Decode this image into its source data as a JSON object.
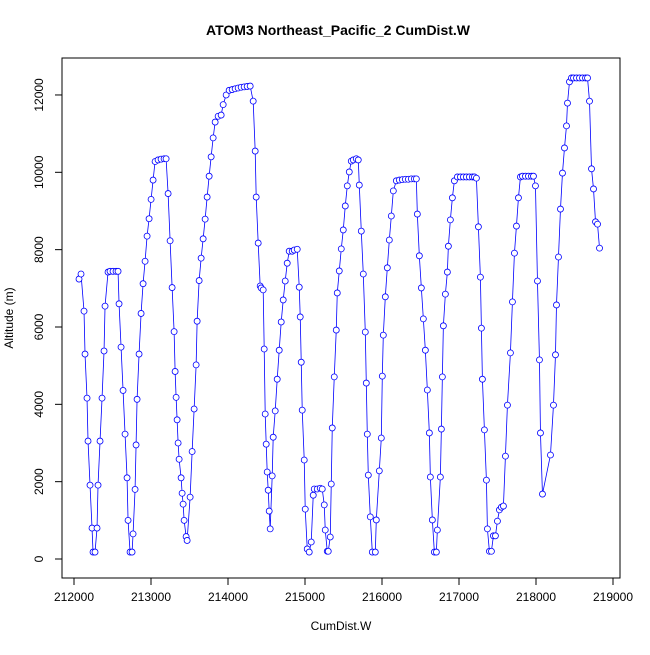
{
  "chart_data": {
    "type": "line",
    "title": "ATOM3 Northeast_Pacific_2 CumDist.W",
    "xlabel": "CumDist.W",
    "ylabel": "Altitude (m)",
    "color": "#0000ff",
    "markers": true,
    "xlim": [
      211844,
      219091
    ],
    "ylim": [
      -491,
      12956
    ],
    "xticks": [
      212000,
      213000,
      214000,
      215000,
      216000,
      217000,
      218000,
      219000
    ],
    "yticks": [
      0,
      2000,
      4000,
      6000,
      8000,
      10000,
      12000
    ],
    "x": [
      212065,
      212091,
      212130,
      212143,
      212169,
      212182,
      212208,
      212234,
      212247,
      212273,
      212299,
      212312,
      212338,
      212364,
      212390,
      212403,
      212442,
      212468,
      212507,
      212546,
      212572,
      212585,
      212611,
      212637,
      212663,
      212689,
      212702,
      212728,
      212754,
      212767,
      212793,
      212806,
      212819,
      212845,
      212871,
      212897,
      212923,
      212949,
      212975,
      213001,
      213027,
      213053,
      213092,
      213131,
      213170,
      213196,
      213222,
      213248,
      213274,
      213300,
      213313,
      213326,
      213339,
      213352,
      213365,
      213391,
      213404,
      213417,
      213430,
      213456,
      213469,
      213508,
      213534,
      213560,
      213586,
      213599,
      213625,
      213651,
      213677,
      213703,
      213729,
      213755,
      213781,
      213807,
      213833,
      213872,
      213911,
      213937,
      213976,
      214015,
      214054,
      214093,
      214132,
      214171,
      214210,
      214249,
      214288,
      214327,
      214353,
      214366,
      214392,
      214418,
      214431,
      214457,
      214470,
      214483,
      214496,
      214509,
      214522,
      214535,
      214548,
      214574,
      214587,
      214613,
      214639,
      214665,
      214691,
      214717,
      214743,
      214769,
      214795,
      214834,
      214860,
      214899,
      214925,
      214938,
      214951,
      214964,
      214990,
      215003,
      215029,
      215055,
      215081,
      215107,
      215120,
      215159,
      215198,
      215224,
      215250,
      215263,
      215289,
      215302,
      215328,
      215341,
      215354,
      215380,
      215406,
      215419,
      215445,
      215471,
      215497,
      215523,
      215549,
      215575,
      215601,
      215627,
      215666,
      215692,
      215705,
      215731,
      215757,
      215783,
      215796,
      215809,
      215822,
      215848,
      215874,
      215913,
      215926,
      215965,
      215991,
      216004,
      216017,
      216043,
      216069,
      216095,
      216121,
      216147,
      216186,
      216225,
      216264,
      216303,
      216342,
      216381,
      216420,
      216446,
      216459,
      216485,
      216511,
      216537,
      216563,
      216589,
      216615,
      216628,
      216654,
      216680,
      216706,
      216719,
      216758,
      216771,
      216784,
      216797,
      216823,
      216849,
      216862,
      216888,
      216914,
      216940,
      216979,
      217018,
      217057,
      217096,
      217135,
      217174,
      217200,
      217226,
      217252,
      217278,
      217291,
      217304,
      217330,
      217356,
      217369,
      217395,
      217421,
      217447,
      217473,
      217499,
      217525,
      217551,
      217577,
      217603,
      217629,
      217668,
      217694,
      217720,
      217746,
      217772,
      217798,
      217824,
      217863,
      217902,
      217941,
      217967,
      217993,
      218019,
      218045,
      218058,
      218084,
      218188,
      218227,
      218253,
      218266,
      218292,
      218318,
      218344,
      218370,
      218396,
      218409,
      218435,
      218461,
      218487,
      218526,
      218565,
      218604,
      218643,
      218669,
      218695,
      218721,
      218747,
      218773,
      218799,
      218825
    ],
    "values": [
      7240,
      7370,
      6410,
      5300,
      4160,
      3050,
      1910,
      800,
      180,
      180,
      800,
      1910,
      3050,
      4160,
      5380,
      6540,
      7420,
      7440,
      7440,
      7440,
      7440,
      6600,
      5480,
      4360,
      3230,
      2100,
      1000,
      180,
      180,
      650,
      1800,
      2950,
      4130,
      5300,
      6350,
      7120,
      7700,
      8350,
      8800,
      9300,
      9800,
      10280,
      10320,
      10340,
      10350,
      10350,
      9450,
      8230,
      7020,
      5880,
      4850,
      4180,
      3600,
      3000,
      2580,
      2100,
      1700,
      1420,
      1000,
      580,
      480,
      1600,
      2780,
      3880,
      5020,
      6150,
      7200,
      7780,
      8280,
      8790,
      9360,
      9900,
      10400,
      10890,
      11300,
      11450,
      11480,
      11750,
      12000,
      12120,
      12140,
      12160,
      12180,
      12200,
      12210,
      12220,
      12230,
      11840,
      10550,
      9360,
      8170,
      7060,
      7010,
      6960,
      5430,
      3750,
      2970,
      2250,
      1780,
      1240,
      780,
      2150,
      3150,
      3830,
      4650,
      5400,
      6130,
      6700,
      7190,
      7650,
      7960,
      7960,
      7990,
      8010,
      7030,
      6260,
      5090,
      3850,
      2560,
      1290,
      260,
      180,
      440,
      1650,
      1810,
      1810,
      1830,
      1810,
      1400,
      750,
      200,
      200,
      570,
      1940,
      3390,
      4710,
      5920,
      6880,
      7450,
      8020,
      8510,
      9130,
      9650,
      10010,
      10290,
      10320,
      10350,
      10320,
      9670,
      8480,
      7370,
      5870,
      4550,
      3230,
      2170,
      1090,
      180,
      180,
      1010,
      2280,
      3130,
      4730,
      5790,
      6780,
      7530,
      8250,
      8870,
      9520,
      9780,
      9800,
      9810,
      9820,
      9820,
      9830,
      9830,
      9830,
      8920,
      7840,
      7010,
      6210,
      5400,
      4370,
      3260,
      2120,
      1010,
      180,
      180,
      750,
      2120,
      3360,
      4710,
      6030,
      6850,
      7420,
      8090,
      8770,
      9340,
      9780,
      9880,
      9880,
      9880,
      9880,
      9880,
      9880,
      9880,
      9850,
      8590,
      7290,
      5970,
      4650,
      3340,
      2040,
      780,
      200,
      200,
      600,
      600,
      980,
      1270,
      1340,
      1370,
      2660,
      3980,
      5330,
      6650,
      7910,
      8610,
      9340,
      9880,
      9900,
      9900,
      9900,
      9900,
      9900,
      9650,
      7190,
      5150,
      3260,
      1680,
      2690,
      3980,
      5280,
      6570,
      7810,
      9050,
      9980,
      10630,
      11200,
      11790,
      12340,
      12440,
      12440,
      12440,
      12440,
      12440,
      12440,
      12440,
      11840,
      10090,
      9570,
      8720,
      8660,
      8040
    ]
  }
}
